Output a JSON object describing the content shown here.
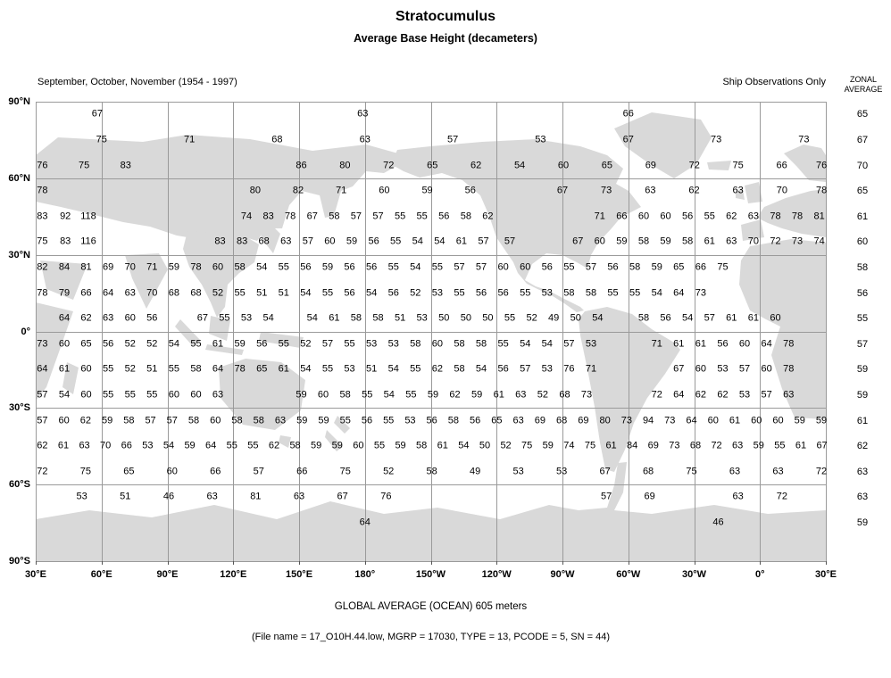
{
  "header": {
    "title": "Stratocumulus",
    "subtitle": "Average Base Height (decameters)",
    "period": "September, October, November (1954 - 1997)",
    "source_note": "Ship Observations Only",
    "zonal_header_line1": "ZONAL",
    "zonal_header_line2": "AVERAGE"
  },
  "footer": {
    "global_average": "GLOBAL AVERAGE (OCEAN)   605 meters",
    "file_info": "(File name = 17_O10H.44.low, MGRP = 17030, TYPE = 13, PCODE = 5, SN = 44)"
  },
  "colors": {
    "land": "#d9d9d9",
    "grid": "#9a9a9a",
    "text": "#000000"
  },
  "axes": {
    "lat_ticks": [
      {
        "label": "90°N",
        "lat": 90
      },
      {
        "label": "60°N",
        "lat": 60
      },
      {
        "label": "30°N",
        "lat": 30
      },
      {
        "label": "0°",
        "lat": 0
      },
      {
        "label": "30°S",
        "lat": -30
      },
      {
        "label": "60°S",
        "lat": -60
      },
      {
        "label": "90°S",
        "lat": -90
      }
    ],
    "lon_ticks": [
      {
        "label": "30°E",
        "t": 0
      },
      {
        "label": "60°E",
        "t": 30
      },
      {
        "label": "90°E",
        "t": 60
      },
      {
        "label": "120°E",
        "t": 90
      },
      {
        "label": "150°E",
        "t": 120
      },
      {
        "label": "180°",
        "t": 150
      },
      {
        "label": "150°W",
        "t": 180
      },
      {
        "label": "120°W",
        "t": 210
      },
      {
        "label": "90°W",
        "t": 240
      },
      {
        "label": "60°W",
        "t": 270
      },
      {
        "label": "30°W",
        "t": 300
      },
      {
        "label": "0°",
        "t": 330
      },
      {
        "label": "30°E",
        "t": 360
      }
    ]
  },
  "chart_data": {
    "type": "heatmap",
    "title": "Stratocumulus — Average Base Height (decameters)",
    "units": "decameters",
    "projection_note": "World map from 30°E eastward to 30°E; t = degrees east of 30°E; values centered in 10° latitude bands",
    "global_average_meters": 605,
    "zonal_average_label": "ZONAL AVERAGE",
    "rows": [
      {
        "band": "80N-90N",
        "lat": 85,
        "zonal": 65,
        "groups": [
          {
            "t": 28,
            "s": 121,
            "v": [
              67,
              63,
              66
            ]
          }
        ]
      },
      {
        "band": "70N-80N",
        "lat": 75,
        "zonal": 67,
        "groups": [
          {
            "t": 30,
            "s": 40,
            "v": [
              75,
              71,
              68,
              63,
              57,
              53,
              67,
              73,
              73
            ]
          }
        ]
      },
      {
        "band": "60N-70N",
        "lat": 65,
        "zonal": 70,
        "groups": [
          {
            "t": 3,
            "s": 19,
            "v": [
              76,
              75,
              83
            ]
          },
          {
            "t": 121,
            "s": 19.9,
            "v": [
              86,
              80,
              72,
              65,
              62,
              54,
              60,
              65,
              69,
              72,
              75,
              66
            ]
          },
          {
            "t": 358,
            "s": 10,
            "v": [
              76
            ]
          }
        ]
      },
      {
        "band": "50N-60N",
        "lat": 55,
        "zonal": 65,
        "groups": [
          {
            "t": 3,
            "s": 10,
            "v": [
              78
            ]
          },
          {
            "t": 100,
            "s": 19.6,
            "v": [
              80,
              82,
              71,
              60,
              59,
              56
            ]
          },
          {
            "t": 240,
            "s": 20,
            "v": [
              67,
              73,
              63,
              62,
              63,
              70
            ]
          },
          {
            "t": 358,
            "s": 10,
            "v": [
              78
            ]
          }
        ]
      },
      {
        "band": "40N-50N",
        "lat": 45,
        "zonal": 61,
        "groups": [
          {
            "t": 3,
            "s": 10.5,
            "v": [
              83,
              92,
              118
            ]
          },
          {
            "t": 96,
            "s": 10,
            "v": [
              74,
              83,
              78,
              67,
              58,
              57,
              57,
              55,
              55,
              56,
              58,
              62
            ]
          },
          {
            "t": 257,
            "s": 10,
            "v": [
              71,
              66,
              60,
              60,
              56,
              55,
              62,
              63,
              78,
              78,
              81
            ]
          }
        ]
      },
      {
        "band": "30N-40N",
        "lat": 35,
        "zonal": 60,
        "groups": [
          {
            "t": 3,
            "s": 10.5,
            "v": [
              75,
              83,
              116
            ]
          },
          {
            "t": 84,
            "s": 10,
            "v": [
              83,
              83,
              68,
              63,
              57,
              60,
              59,
              56,
              55,
              54,
              54,
              61,
              57
            ]
          },
          {
            "t": 216,
            "s": 10,
            "v": [
              57
            ]
          },
          {
            "t": 247,
            "s": 10,
            "v": [
              67,
              60,
              59,
              58,
              59,
              58,
              61,
              63,
              70,
              72,
              73,
              74
            ]
          }
        ]
      },
      {
        "band": "20N-30N",
        "lat": 25,
        "zonal": 58,
        "groups": [
          {
            "t": 3,
            "s": 10,
            "v": [
              82,
              84,
              81,
              69,
              70,
              71,
              59,
              78,
              60,
              58,
              54,
              55,
              56,
              59,
              56,
              56,
              55,
              54,
              55,
              57,
              57,
              60,
              60,
              56,
              55,
              57,
              56,
              58,
              59,
              65,
              66,
              75
            ]
          }
        ]
      },
      {
        "band": "10N-20N",
        "lat": 15,
        "zonal": 56,
        "groups": [
          {
            "t": 3,
            "s": 10,
            "v": [
              78,
              79,
              66,
              64,
              63,
              70,
              68,
              68,
              52,
              55,
              51,
              51,
              54,
              55,
              56,
              54,
              56,
              52,
              53,
              55,
              56,
              56,
              55,
              53,
              58,
              58,
              55,
              55,
              54,
              64,
              73
            ]
          }
        ]
      },
      {
        "band": "0-10N",
        "lat": 5,
        "zonal": 55,
        "groups": [
          {
            "t": 13,
            "s": 10,
            "v": [
              64,
              62,
              63,
              60,
              56
            ]
          },
          {
            "t": 76,
            "s": 10,
            "v": [
              67,
              55,
              53,
              54
            ]
          },
          {
            "t": 126,
            "s": 10,
            "v": [
              54,
              61,
              58,
              58,
              51,
              53,
              50,
              50,
              50,
              55,
              52,
              49,
              50,
              54
            ]
          },
          {
            "t": 277,
            "s": 10,
            "v": [
              58,
              56,
              54,
              57,
              61,
              61,
              60
            ]
          }
        ]
      },
      {
        "band": "0-10S",
        "lat": -5,
        "zonal": 57,
        "groups": [
          {
            "t": 3,
            "s": 10,
            "v": [
              73,
              60,
              65,
              56,
              52,
              52,
              54,
              55,
              61,
              59,
              56,
              55,
              52,
              57,
              55,
              53,
              53,
              58,
              60,
              58,
              58,
              55,
              54,
              54,
              57,
              53
            ]
          },
          {
            "t": 283,
            "s": 10,
            "v": [
              71,
              61,
              61,
              56,
              60,
              64,
              78
            ]
          }
        ]
      },
      {
        "band": "10S-20S",
        "lat": -15,
        "zonal": 59,
        "groups": [
          {
            "t": 3,
            "s": 10,
            "v": [
              64,
              61,
              60,
              55,
              52,
              51,
              55,
              58,
              64,
              78,
              65,
              61,
              54,
              55,
              53,
              51,
              54,
              55,
              62,
              58,
              54,
              56,
              57,
              53,
              76,
              71
            ]
          },
          {
            "t": 293,
            "s": 10,
            "v": [
              67,
              60,
              53,
              57,
              60,
              78
            ]
          }
        ]
      },
      {
        "band": "20S-30S",
        "lat": -25,
        "zonal": 59,
        "groups": [
          {
            "t": 3,
            "s": 10,
            "v": [
              57,
              54,
              60,
              55,
              55,
              55,
              60,
              60,
              63
            ]
          },
          {
            "t": 121,
            "s": 10,
            "v": [
              59,
              60,
              58,
              55,
              54,
              55,
              59,
              62,
              59,
              61,
              63,
              52,
              68,
              73
            ]
          },
          {
            "t": 283,
            "s": 10,
            "v": [
              72,
              64,
              62,
              62,
              53,
              57,
              63
            ]
          }
        ]
      },
      {
        "band": "30S-40S",
        "lat": -35,
        "zonal": 61,
        "groups": [
          {
            "t": 3,
            "s": 9.86,
            "v": [
              57,
              60,
              62,
              59,
              58,
              57,
              57,
              58,
              60,
              58,
              58,
              63,
              59,
              59,
              55,
              56,
              55,
              53,
              56,
              58,
              56,
              65,
              63,
              69,
              68,
              69,
              80,
              73,
              94,
              73,
              64,
              60,
              61,
              60,
              60,
              59,
              59
            ]
          }
        ]
      },
      {
        "band": "40S-50S",
        "lat": -45,
        "zonal": 62,
        "groups": [
          {
            "t": 3,
            "s": 9.6,
            "v": [
              62,
              61,
              63,
              70,
              66,
              53,
              54,
              59,
              64,
              55,
              55,
              62,
              58,
              59,
              59,
              60,
              55,
              59,
              58,
              61,
              54,
              50,
              52,
              75,
              59,
              74,
              75,
              61,
              84,
              69,
              73,
              68,
              72,
              63,
              59,
              55,
              61,
              67
            ]
          }
        ]
      },
      {
        "band": "50S-60S",
        "lat": -55,
        "zonal": 63,
        "groups": [
          {
            "t": 3,
            "s": 19.72,
            "v": [
              72,
              75,
              65,
              60,
              66,
              57,
              66,
              75,
              52,
              58,
              49,
              53,
              53,
              67,
              68,
              75,
              63,
              63,
              72
            ]
          }
        ]
      },
      {
        "band": "60S-70S",
        "lat": -65,
        "zonal": 63,
        "groups": [
          {
            "t": 21,
            "s": 19.8,
            "v": [
              53,
              51,
              46,
              63,
              81,
              63,
              67,
              76
            ]
          },
          {
            "t": 260,
            "s": 19.7,
            "v": [
              57,
              69
            ]
          },
          {
            "t": 320,
            "s": 20,
            "v": [
              63,
              72
            ]
          }
        ]
      },
      {
        "band": "70S-80S",
        "lat": -75,
        "zonal": 59,
        "groups": [
          {
            "t": 150,
            "s": 10,
            "v": [
              64
            ]
          },
          {
            "t": 311,
            "s": 10,
            "v": [
              46
            ]
          }
        ]
      }
    ]
  }
}
